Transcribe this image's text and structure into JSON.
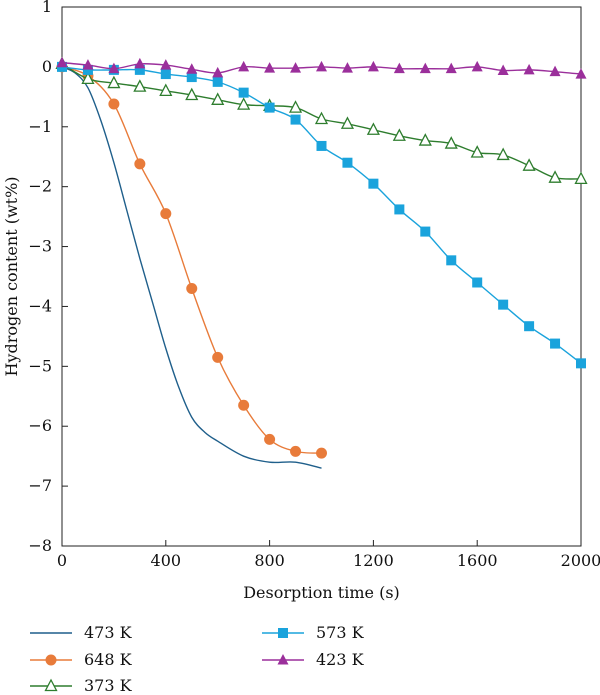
{
  "chart_data": {
    "type": "line",
    "title": "",
    "xlabel": "Desorption time (s)",
    "ylabel": "Hydrogen content (wt%)",
    "xlim": [
      0,
      2000
    ],
    "ylim": [
      -8,
      1
    ],
    "xticks": [
      0,
      400,
      800,
      1200,
      1600,
      2000
    ],
    "xtick_labels": [
      "0",
      "400",
      "800",
      "1200",
      "1600",
      "2000"
    ],
    "yticks": [
      1,
      0,
      -1,
      -2,
      -3,
      -4,
      -5,
      -6,
      -7,
      -8
    ],
    "ytick_labels": [
      "1",
      "0",
      "−1",
      "−2",
      "−3",
      "−4",
      "−5",
      "−6",
      "−7",
      "−8"
    ],
    "grid": false,
    "legend_position": "bottom",
    "series": [
      {
        "name": "473 K",
        "color": "#1f5f8b",
        "marker": "none",
        "x": [
          0,
          50,
          100,
          150,
          200,
          250,
          300,
          350,
          400,
          450,
          500,
          550,
          600,
          700,
          800,
          900,
          1000
        ],
        "y": [
          0,
          -0.1,
          -0.35,
          -0.9,
          -1.6,
          -2.4,
          -3.2,
          -3.95,
          -4.7,
          -5.35,
          -5.85,
          -6.1,
          -6.25,
          -6.5,
          -6.6,
          -6.6,
          -6.7
        ]
      },
      {
        "name": "648 K",
        "color": "#e87b3a",
        "marker": "circle",
        "x": [
          0,
          100,
          200,
          300,
          400,
          500,
          600,
          700,
          800,
          900,
          1000
        ],
        "y": [
          0,
          -0.15,
          -0.62,
          -1.62,
          -2.45,
          -3.7,
          -4.85,
          -5.65,
          -6.22,
          -6.42,
          -6.45
        ]
      },
      {
        "name": "373 K",
        "color": "#2e7d2e",
        "marker": "triangle-open",
        "x": [
          0,
          100,
          200,
          300,
          400,
          500,
          600,
          700,
          800,
          900,
          1000,
          1100,
          1200,
          1300,
          1400,
          1500,
          1600,
          1700,
          1800,
          1900,
          2000
        ],
        "y": [
          0.05,
          -0.2,
          -0.27,
          -0.33,
          -0.4,
          -0.47,
          -0.55,
          -0.63,
          -0.65,
          -0.68,
          -0.87,
          -0.95,
          -1.05,
          -1.15,
          -1.23,
          -1.28,
          -1.43,
          -1.47,
          -1.65,
          -1.85,
          -1.87
        ]
      },
      {
        "name": "573 K",
        "color": "#1aa3dc",
        "marker": "square",
        "x": [
          0,
          100,
          200,
          300,
          400,
          500,
          600,
          700,
          800,
          900,
          1000,
          1100,
          1200,
          1300,
          1400,
          1500,
          1600,
          1700,
          1800,
          1900,
          2000
        ],
        "y": [
          0,
          -0.05,
          -0.05,
          -0.05,
          -0.12,
          -0.17,
          -0.25,
          -0.43,
          -0.68,
          -0.88,
          -1.32,
          -1.6,
          -1.95,
          -2.38,
          -2.75,
          -3.23,
          -3.6,
          -3.97,
          -4.33,
          -4.62,
          -4.95
        ]
      },
      {
        "name": "423 K",
        "color": "#9b2f9b",
        "marker": "triangle",
        "x": [
          0,
          100,
          200,
          300,
          400,
          500,
          600,
          700,
          800,
          900,
          1000,
          1100,
          1200,
          1300,
          1400,
          1500,
          1600,
          1700,
          1800,
          1900,
          2000
        ],
        "y": [
          0.07,
          0.03,
          -0.03,
          0.05,
          0.03,
          -0.04,
          -0.1,
          0,
          -0.02,
          -0.02,
          0,
          -0.02,
          0,
          -0.03,
          -0.03,
          -0.03,
          0,
          -0.06,
          -0.05,
          -0.08,
          -0.12
        ]
      }
    ]
  }
}
